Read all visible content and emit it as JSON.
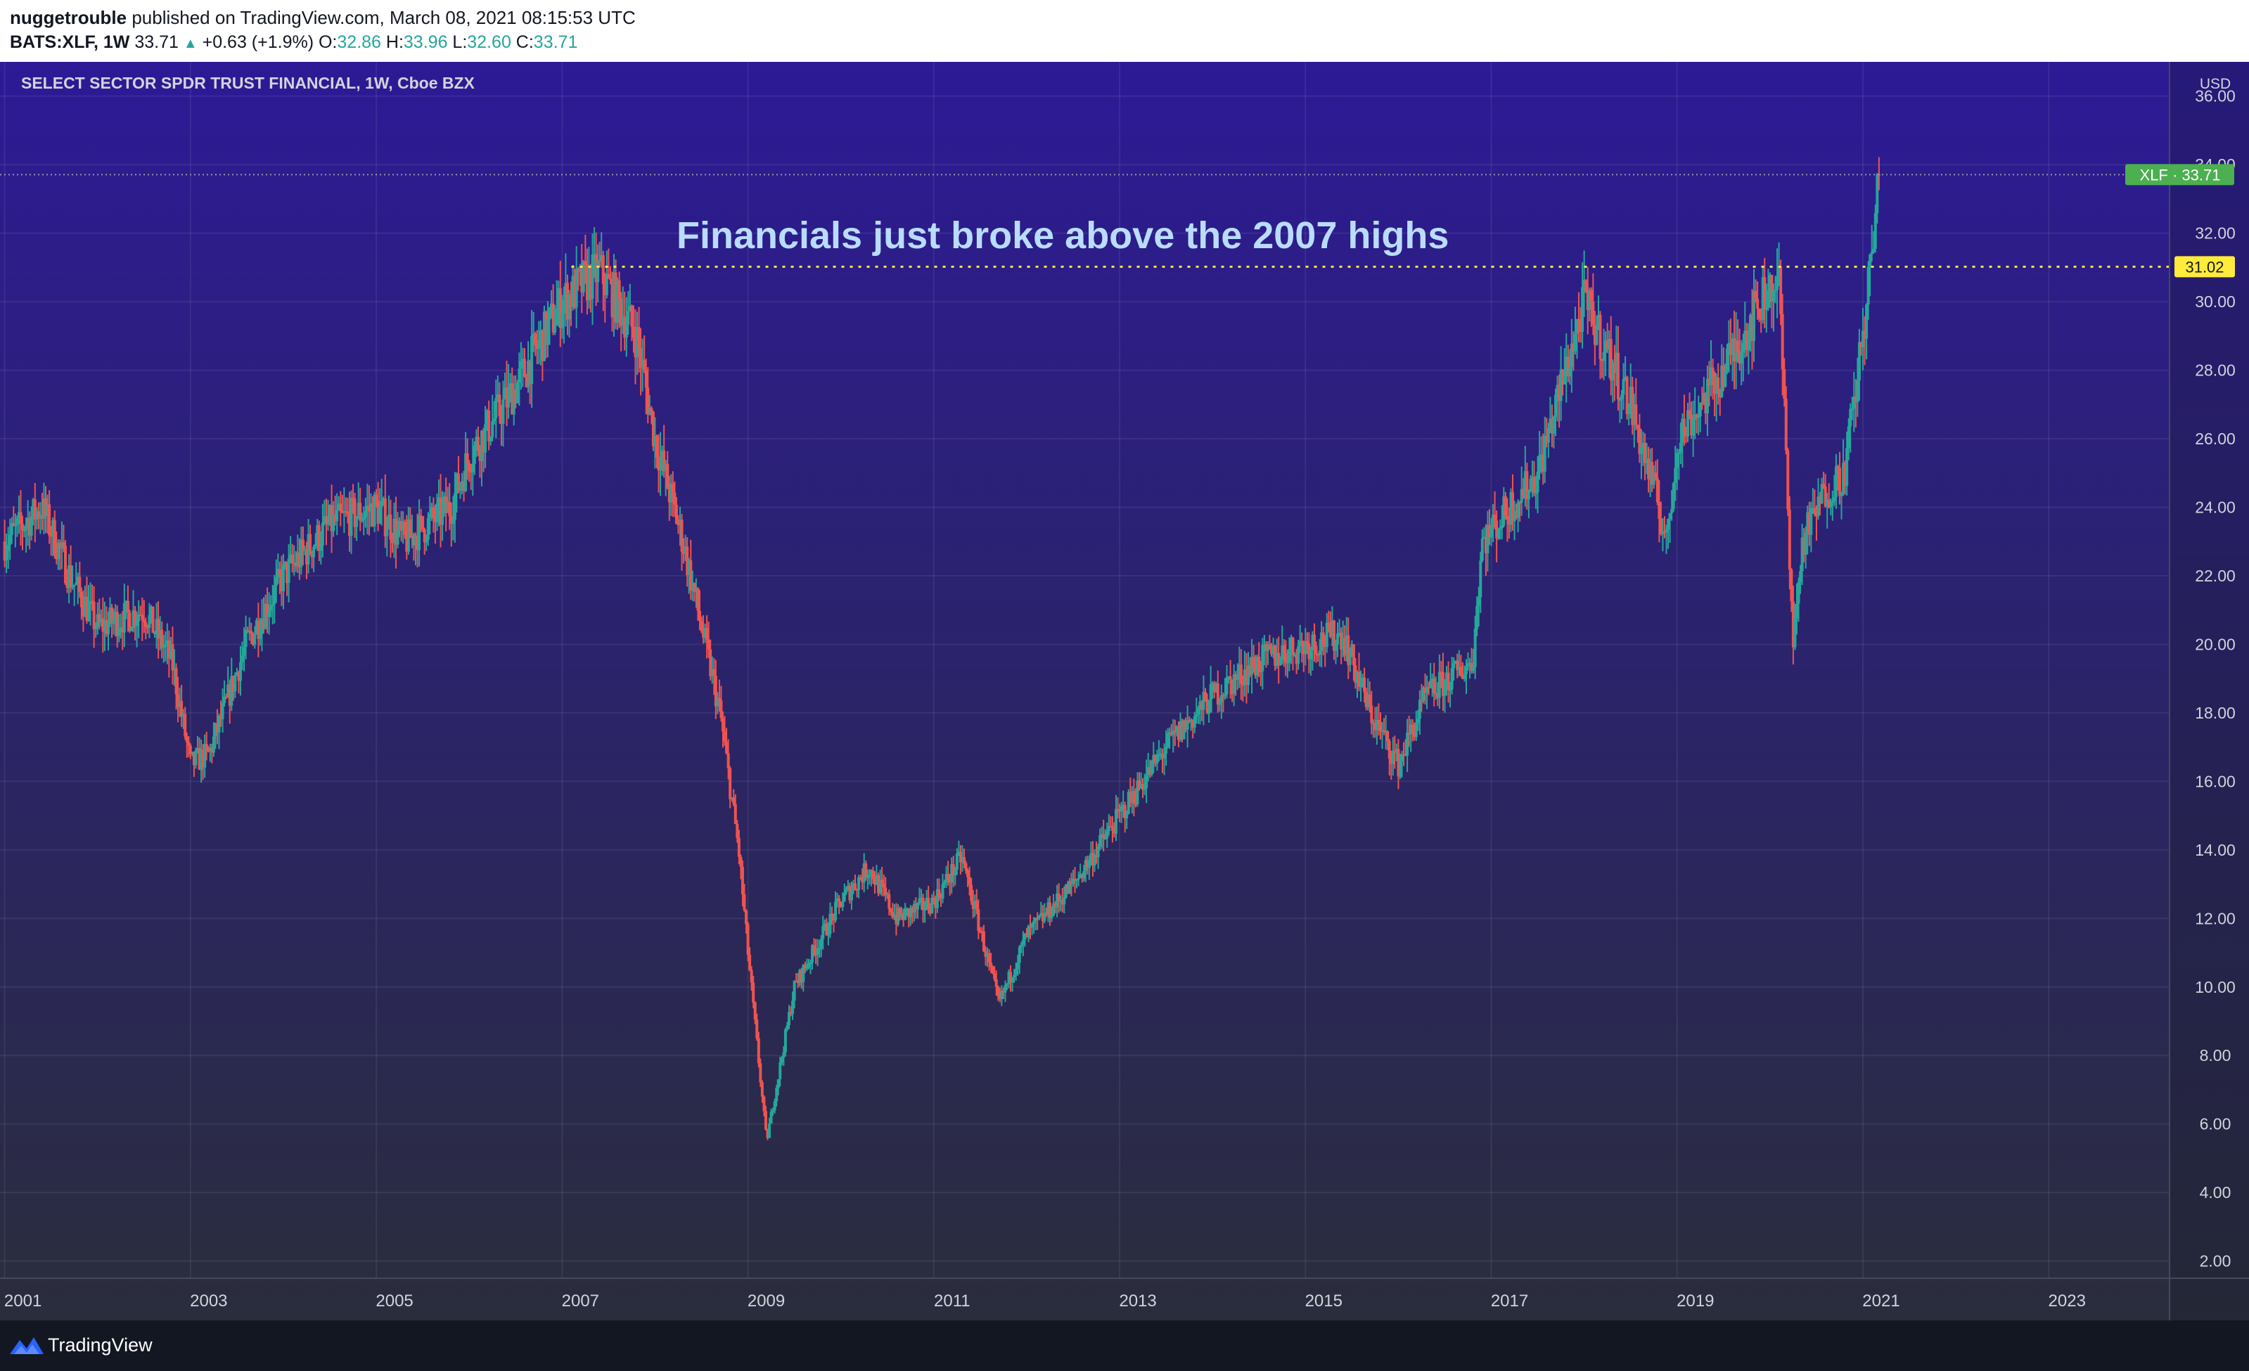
{
  "header": {
    "author": "nuggetrouble",
    "published": "published on TradingView.com, March 08, 2021 08:15:53 UTC",
    "symbol": "BATS:XLF, 1W",
    "last": "33.71",
    "change": "+0.63 (+1.9%)",
    "o_label": "O:",
    "o_value": "32.86",
    "h_label": "H:",
    "h_value": "33.96",
    "l_label": "L:",
    "l_value": "32.60",
    "c_label": "C:",
    "c_value": "33.71"
  },
  "footer": {
    "brand": "TradingView"
  },
  "colors": {
    "bg_top": "#2c1a96",
    "bg_bottom": "#2a2d3c",
    "up": "#26a69a",
    "down": "#ef5350",
    "annotation": "#b9dcff",
    "level_line": "#ffeb3b",
    "last_price_badge": "#4caf50"
  },
  "chart_data": {
    "type": "candlestick",
    "title": "SELECT SECTOR SPDR TRUST FINANCIAL, 1W, Cboe BZX",
    "ylabel": "USD",
    "ylim": [
      1.5,
      37
    ],
    "xlim": [
      2000.95,
      2024.3
    ],
    "y_ticks": [
      "2.00",
      "4.00",
      "6.00",
      "8.00",
      "10.00",
      "12.00",
      "14.00",
      "16.00",
      "18.00",
      "20.00",
      "22.00",
      "24.00",
      "26.00",
      "28.00",
      "30.00",
      "32.00",
      "34.00",
      "36.00"
    ],
    "x_ticks": [
      "2001",
      "2003",
      "2005",
      "2007",
      "2009",
      "2011",
      "2013",
      "2015",
      "2017",
      "2019",
      "2021",
      "2023"
    ],
    "annotation": "Financials just broke above the 2007 highs",
    "horizontal_level": {
      "value": 31.02,
      "label": "31.02",
      "from_x": 2007.1
    },
    "last_price": {
      "name": "XLF",
      "value": 33.71,
      "label": "XLF · 33.71"
    },
    "series": [
      {
        "name": "XLF",
        "x": [
          2001,
          2001.4,
          2001.7,
          2002,
          2002.5,
          2002.8,
          2003,
          2003.2,
          2003.6,
          2004,
          2004.5,
          2005,
          2005.3,
          2005.8,
          2006,
          2006.5,
          2007,
          2007.4,
          2007.8,
          2008,
          2008.3,
          2008.7,
          2008.9,
          2009,
          2009.2,
          2009.5,
          2010,
          2010.3,
          2010.6,
          2011,
          2011.3,
          2011.7,
          2012,
          2012.5,
          2013,
          2013.5,
          2014,
          2014.5,
          2015,
          2015.4,
          2015.7,
          2016,
          2016.3,
          2016.8,
          2016.9,
          2017.2,
          2017.5,
          2018,
          2018.5,
          2018.9,
          2019,
          2019.5,
          2020,
          2020.1,
          2020.25,
          2020.35,
          2020.6,
          2020.8,
          2020.9,
          2021,
          2021.1,
          2021.18
        ],
        "values": [
          23,
          24,
          22,
          20.5,
          21,
          19.5,
          16.5,
          16.8,
          20,
          22,
          23.5,
          24,
          23,
          24,
          25.5,
          27.5,
          30,
          30.9,
          29,
          26,
          23,
          18,
          14,
          11,
          5.5,
          10,
          12.5,
          13.5,
          12,
          12.5,
          13.8,
          9.5,
          11.5,
          13,
          15,
          17,
          18.5,
          19.5,
          20,
          20.3,
          18,
          16.5,
          18.5,
          19.5,
          23,
          24,
          25,
          30,
          27,
          23,
          26,
          28,
          30.5,
          30.5,
          20,
          23,
          24.5,
          25,
          27,
          29,
          31.5,
          33.71
        ]
      }
    ]
  }
}
